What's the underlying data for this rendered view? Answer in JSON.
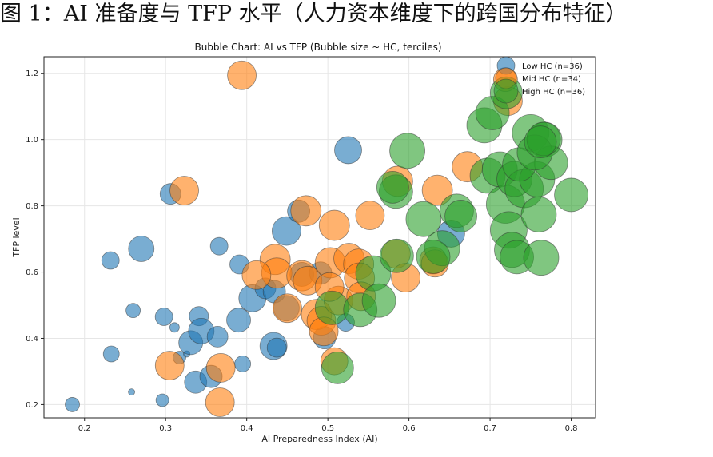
{
  "page": {
    "heading": "图 1：AI 准备度与 TFP 水平（人力资本维度下的跨国分布特征）"
  },
  "chart_data": {
    "type": "scatter",
    "title": "Bubble Chart: AI vs TFP (Bubble size ~ HC, terciles)",
    "xlabel": "AI Preparedness Index (AI)",
    "ylabel": "TFP level",
    "xlim": [
      0.15,
      0.83
    ],
    "ylim": [
      0.16,
      1.25
    ],
    "xticks": [
      "0.2",
      "0.3",
      "0.4",
      "0.5",
      "0.6",
      "0.7",
      "0.8"
    ],
    "yticks": [
      "0.2",
      "0.4",
      "0.6",
      "0.8",
      "1.0",
      "1.2"
    ],
    "grid": true,
    "legend_position": "top-right",
    "series": [
      {
        "name": "Low HC (n=36)",
        "color": "#1f77b4",
        "points": [
          [
            0.185,
            0.2,
            9
          ],
          [
            0.232,
            0.635,
            11
          ],
          [
            0.233,
            0.353,
            10
          ],
          [
            0.258,
            0.238,
            4
          ],
          [
            0.26,
            0.484,
            9
          ],
          [
            0.27,
            0.67,
            16
          ],
          [
            0.296,
            0.213,
            8
          ],
          [
            0.298,
            0.465,
            11
          ],
          [
            0.306,
            0.836,
            13
          ],
          [
            0.311,
            0.433,
            6
          ],
          [
            0.317,
            0.342,
            8
          ],
          [
            0.326,
            0.353,
            4
          ],
          [
            0.331,
            0.387,
            15
          ],
          [
            0.337,
            0.268,
            14
          ],
          [
            0.341,
            0.467,
            12
          ],
          [
            0.344,
            0.422,
            16
          ],
          [
            0.356,
            0.285,
            14
          ],
          [
            0.364,
            0.405,
            13
          ],
          [
            0.366,
            0.678,
            11
          ],
          [
            0.391,
            0.623,
            12
          ],
          [
            0.39,
            0.455,
            15
          ],
          [
            0.395,
            0.323,
            10
          ],
          [
            0.407,
            0.521,
            17
          ],
          [
            0.423,
            0.551,
            13
          ],
          [
            0.433,
            0.377,
            17
          ],
          [
            0.437,
            0.372,
            12
          ],
          [
            0.434,
            0.541,
            14
          ],
          [
            0.449,
            0.491,
            16
          ],
          [
            0.449,
            0.724,
            18
          ],
          [
            0.464,
            0.784,
            14
          ],
          [
            0.468,
            0.593,
            15
          ],
          [
            0.491,
            0.597,
            14
          ],
          [
            0.496,
            0.402,
            14
          ],
          [
            0.522,
            0.448,
            11
          ],
          [
            0.525,
            0.968,
            17
          ],
          [
            0.652,
            0.716,
            17
          ]
        ]
      },
      {
        "name": "Mid HC (n=34)",
        "color": "#ff7f0e",
        "points": [
          [
            0.394,
            1.194,
            18
          ],
          [
            0.323,
            0.846,
            18
          ],
          [
            0.305,
            0.318,
            18
          ],
          [
            0.367,
            0.207,
            18
          ],
          [
            0.368,
            0.311,
            18
          ],
          [
            0.435,
            0.638,
            19
          ],
          [
            0.437,
            0.597,
            19
          ],
          [
            0.412,
            0.591,
            18
          ],
          [
            0.45,
            0.491,
            18
          ],
          [
            0.473,
            0.785,
            19
          ],
          [
            0.468,
            0.589,
            19
          ],
          [
            0.475,
            0.574,
            18
          ],
          [
            0.486,
            0.472,
            19
          ],
          [
            0.492,
            0.453,
            18
          ],
          [
            0.495,
            0.421,
            18
          ],
          [
            0.508,
            0.741,
            19
          ],
          [
            0.503,
            0.628,
            19
          ],
          [
            0.508,
            0.331,
            17
          ],
          [
            0.513,
            0.514,
            18
          ],
          [
            0.526,
            0.641,
            19
          ],
          [
            0.538,
            0.624,
            19
          ],
          [
            0.539,
            0.582,
            19
          ],
          [
            0.541,
            0.527,
            18
          ],
          [
            0.552,
            0.771,
            18
          ],
          [
            0.586,
            0.874,
            19
          ],
          [
            0.584,
            0.655,
            18
          ],
          [
            0.596,
            0.583,
            18
          ],
          [
            0.63,
            0.635,
            17
          ],
          [
            0.632,
            0.626,
            17
          ],
          [
            0.635,
            0.847,
            19
          ],
          [
            0.672,
            0.918,
            19
          ],
          [
            0.722,
            1.116,
            18
          ],
          [
            0.719,
            1.181,
            15
          ],
          [
            0.502,
            0.555,
            18
          ]
        ]
      },
      {
        "name": "High HC (n=36)",
        "color": "#2ca02c",
        "points": [
          [
            0.512,
            0.311,
            20
          ],
          [
            0.505,
            0.492,
            21
          ],
          [
            0.54,
            0.486,
            21
          ],
          [
            0.556,
            0.596,
            22
          ],
          [
            0.563,
            0.514,
            21
          ],
          [
            0.585,
            0.649,
            21
          ],
          [
            0.584,
            0.843,
            21
          ],
          [
            0.58,
            0.856,
            20
          ],
          [
            0.598,
            0.966,
            22
          ],
          [
            0.618,
            0.76,
            22
          ],
          [
            0.641,
            0.672,
            22
          ],
          [
            0.63,
            0.646,
            21
          ],
          [
            0.659,
            0.785,
            21
          ],
          [
            0.664,
            0.769,
            20
          ],
          [
            0.693,
            1.043,
            22
          ],
          [
            0.703,
            1.08,
            21
          ],
          [
            0.697,
            0.891,
            22
          ],
          [
            0.712,
            0.91,
            22
          ],
          [
            0.719,
            0.805,
            24
          ],
          [
            0.723,
            0.727,
            23
          ],
          [
            0.73,
            0.881,
            22
          ],
          [
            0.742,
            0.852,
            24
          ],
          [
            0.758,
            0.88,
            22
          ],
          [
            0.76,
            0.774,
            22
          ],
          [
            0.75,
            1.02,
            23
          ],
          [
            0.767,
            0.999,
            22
          ],
          [
            0.775,
            0.93,
            21
          ],
          [
            0.8,
            0.833,
            21
          ],
          [
            0.727,
            0.667,
            22
          ],
          [
            0.733,
            0.645,
            21
          ],
          [
            0.763,
            0.643,
            22
          ],
          [
            0.736,
            0.925,
            21
          ],
          [
            0.755,
            0.961,
            22
          ],
          [
            0.766,
            1.002,
            21
          ],
          [
            0.72,
            1.141,
            20
          ],
          [
            0.762,
            0.993,
            20
          ]
        ]
      }
    ]
  }
}
